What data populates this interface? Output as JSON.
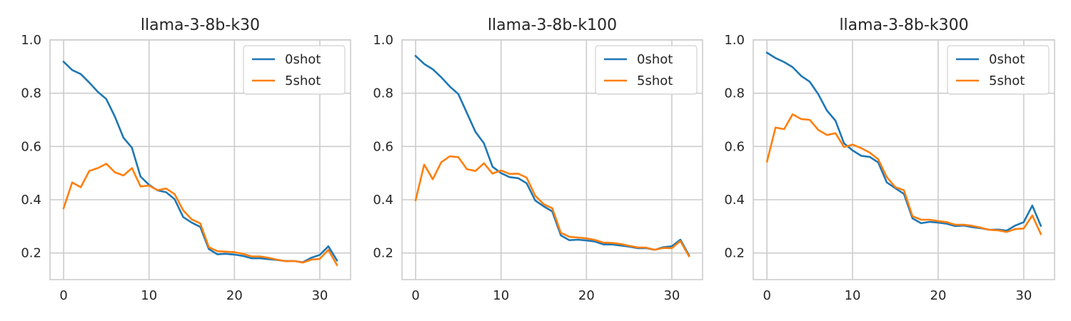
{
  "colors": {
    "series_0shot": "#1f77b4",
    "series_5shot": "#ff7f0e",
    "grid": "#cccccc",
    "frame": "#cccccc",
    "legend_border": "#d0d0d0",
    "text": "#262626"
  },
  "chart_data": [
    {
      "type": "line",
      "title": "llama-3-8b-k30",
      "xlabel": "",
      "ylabel": "",
      "xlim": [
        -1.6,
        33.6
      ],
      "ylim": [
        0.1,
        1.0
      ],
      "xticks": [
        0,
        10,
        20,
        30
      ],
      "yticks": [
        0.2,
        0.4,
        0.6,
        0.8,
        1.0
      ],
      "xtick_labels": [
        "0",
        "10",
        "20",
        "30"
      ],
      "ytick_labels": [
        "0.2",
        "0.4",
        "0.6",
        "0.8",
        "1.0"
      ],
      "grid": true,
      "legend": "top-right",
      "x": [
        0,
        1,
        2,
        3,
        4,
        5,
        6,
        7,
        8,
        9,
        10,
        11,
        12,
        13,
        14,
        15,
        16,
        17,
        18,
        19,
        20,
        21,
        22,
        23,
        24,
        25,
        26,
        27,
        28,
        29,
        30,
        31,
        32
      ],
      "series": [
        {
          "name": "0shot",
          "values": [
            0.918,
            0.887,
            0.872,
            0.84,
            0.805,
            0.778,
            0.712,
            0.633,
            0.595,
            0.487,
            0.456,
            0.435,
            0.428,
            0.402,
            0.335,
            0.314,
            0.298,
            0.215,
            0.195,
            0.197,
            0.194,
            0.189,
            0.18,
            0.18,
            0.177,
            0.174,
            0.17,
            0.17,
            0.165,
            0.182,
            0.193,
            0.225,
            0.172
          ]
        },
        {
          "name": "5shot",
          "values": [
            0.368,
            0.465,
            0.447,
            0.508,
            0.519,
            0.535,
            0.503,
            0.491,
            0.519,
            0.45,
            0.453,
            0.436,
            0.442,
            0.421,
            0.36,
            0.326,
            0.311,
            0.222,
            0.207,
            0.205,
            0.203,
            0.197,
            0.187,
            0.187,
            0.182,
            0.175,
            0.169,
            0.17,
            0.164,
            0.175,
            0.178,
            0.212,
            0.155
          ]
        }
      ]
    },
    {
      "type": "line",
      "title": "llama-3-8b-k100",
      "xlabel": "",
      "ylabel": "",
      "xlim": [
        -1.6,
        33.6
      ],
      "ylim": [
        0.1,
        1.0
      ],
      "xticks": [
        0,
        10,
        20,
        30
      ],
      "yticks": [
        0.2,
        0.4,
        0.6,
        0.8,
        1.0
      ],
      "xtick_labels": [
        "0",
        "10",
        "20",
        "30"
      ],
      "ytick_labels": [
        "0.2",
        "0.4",
        "0.6",
        "0.8",
        "1.0"
      ],
      "grid": true,
      "legend": "top-right",
      "x": [
        0,
        1,
        2,
        3,
        4,
        5,
        6,
        7,
        8,
        9,
        10,
        11,
        12,
        13,
        14,
        15,
        16,
        17,
        18,
        19,
        20,
        21,
        22,
        23,
        24,
        25,
        26,
        27,
        28,
        29,
        30,
        31,
        32
      ],
      "series": [
        {
          "name": "0shot",
          "values": [
            0.94,
            0.91,
            0.89,
            0.86,
            0.825,
            0.797,
            0.726,
            0.655,
            0.612,
            0.524,
            0.5,
            0.485,
            0.481,
            0.462,
            0.397,
            0.375,
            0.356,
            0.266,
            0.248,
            0.25,
            0.247,
            0.243,
            0.232,
            0.232,
            0.228,
            0.224,
            0.218,
            0.218,
            0.212,
            0.222,
            0.225,
            0.25,
            0.192
          ]
        },
        {
          "name": "5shot",
          "values": [
            0.398,
            0.532,
            0.477,
            0.541,
            0.563,
            0.56,
            0.515,
            0.508,
            0.537,
            0.498,
            0.51,
            0.497,
            0.498,
            0.483,
            0.415,
            0.383,
            0.368,
            0.276,
            0.261,
            0.258,
            0.255,
            0.249,
            0.239,
            0.238,
            0.234,
            0.227,
            0.221,
            0.22,
            0.212,
            0.219,
            0.218,
            0.245,
            0.188
          ]
        }
      ]
    },
    {
      "type": "line",
      "title": "llama-3-8b-k300",
      "xlabel": "",
      "ylabel": "",
      "xlim": [
        -1.6,
        33.6
      ],
      "ylim": [
        0.1,
        1.0
      ],
      "xticks": [
        0,
        10,
        20,
        30
      ],
      "yticks": [
        0.2,
        0.4,
        0.6,
        0.8,
        1.0
      ],
      "xtick_labels": [
        "0",
        "10",
        "20",
        "30"
      ],
      "ytick_labels": [
        "0.2",
        "0.4",
        "0.6",
        "0.8",
        "1.0"
      ],
      "grid": true,
      "legend": "top-right",
      "x": [
        0,
        1,
        2,
        3,
        4,
        5,
        6,
        7,
        8,
        9,
        10,
        11,
        12,
        13,
        14,
        15,
        16,
        17,
        18,
        19,
        20,
        21,
        22,
        23,
        24,
        25,
        26,
        27,
        28,
        29,
        30,
        31,
        32
      ],
      "series": [
        {
          "name": "0shot",
          "values": [
            0.952,
            0.932,
            0.917,
            0.898,
            0.865,
            0.843,
            0.796,
            0.735,
            0.697,
            0.612,
            0.585,
            0.565,
            0.561,
            0.54,
            0.465,
            0.443,
            0.422,
            0.33,
            0.312,
            0.317,
            0.314,
            0.31,
            0.301,
            0.303,
            0.297,
            0.293,
            0.287,
            0.288,
            0.284,
            0.303,
            0.316,
            0.378,
            0.302
          ]
        },
        {
          "name": "5shot",
          "values": [
            0.543,
            0.671,
            0.665,
            0.721,
            0.703,
            0.7,
            0.662,
            0.643,
            0.65,
            0.598,
            0.607,
            0.594,
            0.577,
            0.552,
            0.485,
            0.447,
            0.436,
            0.338,
            0.325,
            0.325,
            0.32,
            0.316,
            0.306,
            0.306,
            0.302,
            0.295,
            0.287,
            0.285,
            0.279,
            0.29,
            0.292,
            0.341,
            0.271
          ]
        }
      ]
    }
  ]
}
